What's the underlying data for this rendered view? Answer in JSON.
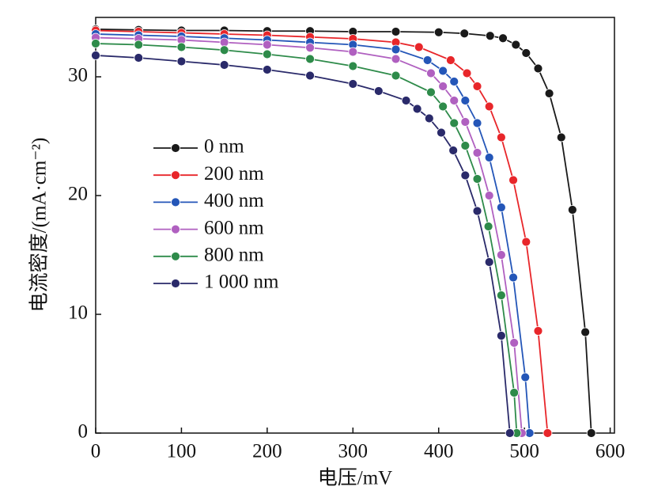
{
  "chart_data": {
    "type": "line",
    "xlabel": "电压/mV",
    "ylabel": "电流密度/(mA·cm⁻²)",
    "xlim": [
      0,
      605
    ],
    "ylim": [
      0,
      35
    ],
    "xticks": [
      0,
      100,
      200,
      300,
      400,
      500,
      600
    ],
    "yticks": [
      0,
      10,
      20,
      30
    ],
    "legend": "left",
    "series": [
      {
        "name": "0 nm",
        "color": "#1a1a1a",
        "x": [
          0,
          50,
          100,
          150,
          200,
          250,
          300,
          350,
          400,
          430,
          460,
          475,
          490,
          502,
          516,
          529,
          543,
          556,
          571,
          578
        ],
        "values": [
          34.0,
          33.95,
          33.9,
          33.9,
          33.85,
          33.85,
          33.8,
          33.8,
          33.75,
          33.65,
          33.45,
          33.25,
          32.7,
          32.0,
          30.7,
          28.6,
          24.9,
          18.8,
          8.5,
          0
        ]
      },
      {
        "name": "200 nm",
        "color": "#e8262a",
        "x": [
          0,
          50,
          100,
          150,
          200,
          250,
          300,
          350,
          377,
          414,
          433,
          445,
          459,
          473,
          487,
          502,
          516,
          527
        ],
        "values": [
          33.9,
          33.8,
          33.7,
          33.6,
          33.5,
          33.35,
          33.2,
          32.9,
          32.5,
          31.4,
          30.3,
          29.2,
          27.5,
          24.9,
          21.3,
          16.1,
          8.6,
          0
        ]
      },
      {
        "name": "400 nm",
        "color": "#2456b8",
        "x": [
          0,
          50,
          100,
          150,
          200,
          250,
          300,
          350,
          387,
          405,
          418,
          431,
          445,
          459,
          473,
          487,
          501,
          506
        ],
        "values": [
          33.6,
          33.5,
          33.4,
          33.25,
          33.1,
          32.9,
          32.7,
          32.3,
          31.4,
          30.5,
          29.6,
          28.0,
          26.1,
          23.2,
          19.0,
          13.1,
          4.7,
          0
        ]
      },
      {
        "name": "600 nm",
        "color": "#b060c0",
        "x": [
          0,
          50,
          100,
          150,
          200,
          250,
          300,
          350,
          391,
          405,
          418,
          431,
          445,
          459,
          473,
          488,
          497
        ],
        "values": [
          33.3,
          33.2,
          33.1,
          32.9,
          32.7,
          32.45,
          32.1,
          31.5,
          30.3,
          29.2,
          28.0,
          26.2,
          23.6,
          20.0,
          15.0,
          7.6,
          0
        ]
      },
      {
        "name": "800 nm",
        "color": "#2e8b4a",
        "x": [
          0,
          50,
          100,
          150,
          200,
          250,
          300,
          350,
          391,
          405,
          418,
          431,
          445,
          458,
          473,
          488,
          491
        ],
        "values": [
          32.8,
          32.7,
          32.5,
          32.25,
          31.9,
          31.5,
          30.9,
          30.1,
          28.7,
          27.5,
          26.1,
          24.2,
          21.4,
          17.4,
          11.6,
          3.4,
          0
        ]
      },
      {
        "name": "1 000 nm",
        "color": "#2a2a6a",
        "x": [
          0,
          50,
          100,
          150,
          200,
          250,
          300,
          330,
          362,
          375,
          389,
          403,
          417,
          431,
          445,
          459,
          473,
          483
        ],
        "values": [
          31.8,
          31.6,
          31.3,
          31.0,
          30.6,
          30.1,
          29.4,
          28.8,
          28.0,
          27.3,
          26.5,
          25.3,
          23.8,
          21.7,
          18.7,
          14.4,
          8.2,
          0
        ]
      }
    ]
  }
}
